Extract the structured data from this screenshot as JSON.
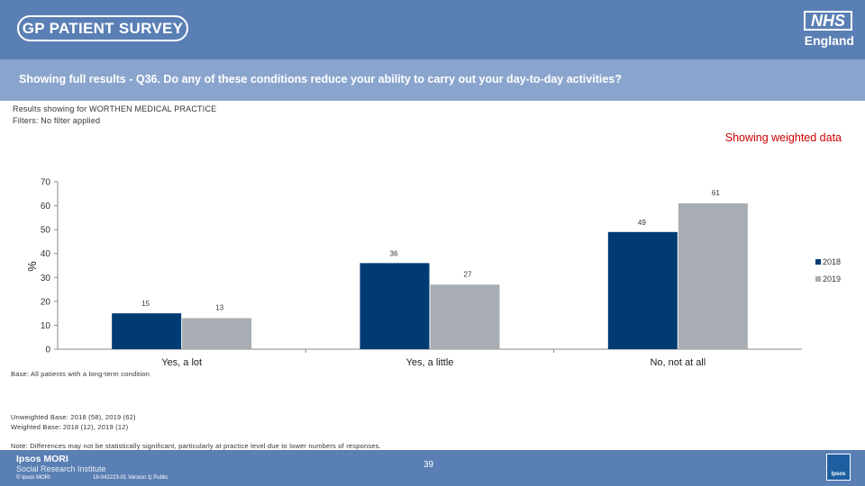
{
  "header": {
    "survey_logo": "GP PATIENT SURVEY",
    "nhs_logo": "NHS",
    "nhs_sub": "England"
  },
  "question": "Showing full results - Q36.  Do any of these conditions reduce your ability to carry out your day-to-day activities?",
  "meta": {
    "practice": "Results showing for WORTHEN MEDICAL PRACTICE",
    "filters": "Filters: No filter applied"
  },
  "weighted_label": "Showing weighted data",
  "chart_data": {
    "type": "bar",
    "ylabel": "%",
    "ylim": [
      0,
      70
    ],
    "yticks": [
      0,
      10,
      20,
      30,
      40,
      50,
      60,
      70
    ],
    "categories": [
      "Yes, a lot",
      "Yes, a little",
      "No, not at all"
    ],
    "series": [
      {
        "name": "2018",
        "color": "#003b73",
        "values": [
          15,
          36,
          49
        ]
      },
      {
        "name": "2019",
        "color": "#a8adb3",
        "values": [
          13,
          27,
          61
        ]
      }
    ],
    "legend": "right"
  },
  "notes": {
    "base": "Base: All patients with a long-term condition",
    "unweighted": "Unweighted Base: 2018 (58), 2019 (62)",
    "weighted": "Weighted Base: 2018 (12), 2019 (12)",
    "differences": "Note: Differences may not be statistically significant, particularly at practice level due to lower numbers of responses."
  },
  "footer": {
    "org1": "Ipsos MORI",
    "org2": "Social Research Institute",
    "copyright": "© Ipsos MORI",
    "job": "18-042223-01 Version 1| Public",
    "page": "39",
    "ipsos_logo": "Ipsos"
  }
}
